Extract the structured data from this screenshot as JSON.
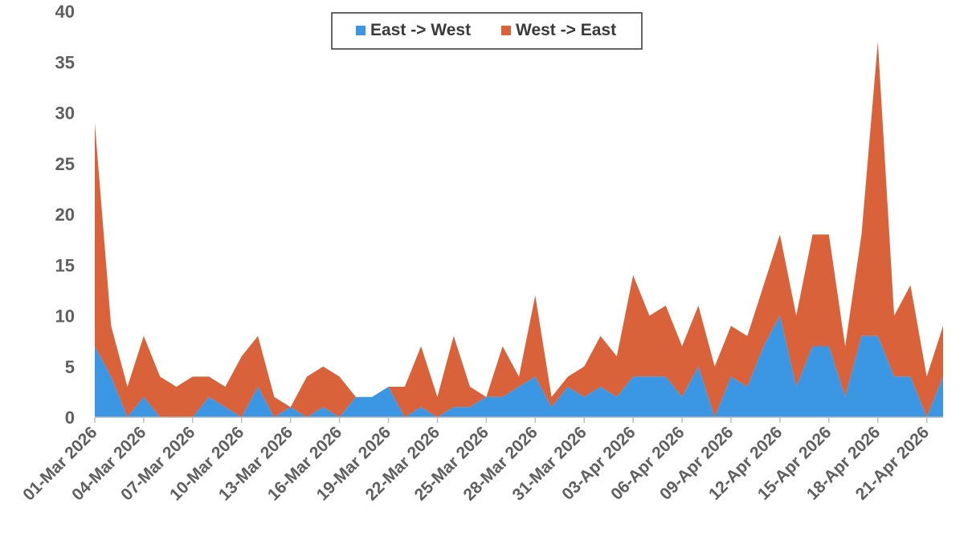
{
  "chart_data": {
    "type": "area",
    "stacked": true,
    "x": [
      "01-Mar 2026",
      "02-Mar 2026",
      "03-Mar 2026",
      "04-Mar 2026",
      "05-Mar 2026",
      "06-Mar 2026",
      "07-Mar 2026",
      "08-Mar 2026",
      "09-Mar 2026",
      "10-Mar 2026",
      "11-Mar 2026",
      "12-Mar 2026",
      "13-Mar 2026",
      "14-Mar 2026",
      "15-Mar 2026",
      "16-Mar 2026",
      "17-Mar 2026",
      "18-Mar 2026",
      "19-Mar 2026",
      "20-Mar 2026",
      "21-Mar 2026",
      "22-Mar 2026",
      "23-Mar 2026",
      "24-Mar 2026",
      "25-Mar 2026",
      "26-Mar 2026",
      "27-Mar 2026",
      "28-Mar 2026",
      "29-Mar 2026",
      "30-Mar 2026",
      "31-Mar 2026",
      "01-Apr 2026",
      "02-Apr 2026",
      "03-Apr 2026",
      "04-Apr 2026",
      "05-Apr 2026",
      "06-Apr 2026",
      "07-Apr 2026",
      "08-Apr 2026",
      "09-Apr 2026",
      "10-Apr 2026",
      "11-Apr 2026",
      "12-Apr 2026",
      "13-Apr 2026",
      "14-Apr 2026",
      "15-Apr 2026",
      "16-Apr 2026",
      "17-Apr 2026",
      "18-Apr 2026",
      "19-Apr 2026",
      "20-Apr 2026",
      "21-Apr 2026",
      "22-Apr 2026"
    ],
    "x_tick_labels": [
      "01-Mar 2026",
      "04-Mar 2026",
      "07-Mar 2026",
      "10-Mar 2026",
      "13-Mar 2026",
      "16-Mar 2026",
      "19-Mar 2026",
      "22-Mar 2026",
      "25-Mar 2026",
      "28-Mar 2026",
      "31-Mar 2026",
      "03-Apr 2026",
      "06-Apr 2026",
      "09-Apr 2026",
      "12-Apr 2026",
      "15-Apr 2026",
      "18-Apr 2026",
      "21-Apr 2026"
    ],
    "x_tick_every": 3,
    "series": [
      {
        "name": "East -> West",
        "color": "#3b97e3",
        "values": [
          7,
          4,
          0,
          2,
          0,
          0,
          0,
          2,
          1,
          0,
          3,
          0,
          1,
          0,
          1,
          0,
          2,
          2,
          3,
          0,
          1,
          0,
          1,
          1,
          2,
          2,
          3,
          4,
          1,
          3,
          2,
          3,
          2,
          4,
          4,
          4,
          2,
          5,
          0,
          4,
          3,
          7,
          10,
          3,
          7,
          7,
          2,
          8,
          8,
          4,
          4,
          0,
          4
        ]
      },
      {
        "name": "West -> East",
        "color": "#d9623b",
        "values": [
          22,
          5,
          3,
          6,
          4,
          3,
          4,
          2,
          2,
          6,
          5,
          2,
          0,
          4,
          4,
          4,
          0,
          0,
          0,
          3,
          6,
          2,
          7,
          2,
          0,
          5,
          1,
          8,
          1,
          1,
          3,
          5,
          4,
          10,
          6,
          7,
          5,
          6,
          5,
          5,
          5,
          6,
          8,
          7,
          11,
          11,
          5,
          10,
          29,
          6,
          9,
          4,
          5
        ]
      }
    ],
    "yticks": [
      0,
      5,
      10,
      15,
      20,
      25,
      30,
      35,
      40
    ],
    "ylim": [
      0,
      40
    ],
    "title": "",
    "xlabel": "",
    "ylabel": "",
    "legend_position": "top-center",
    "grid": false
  }
}
